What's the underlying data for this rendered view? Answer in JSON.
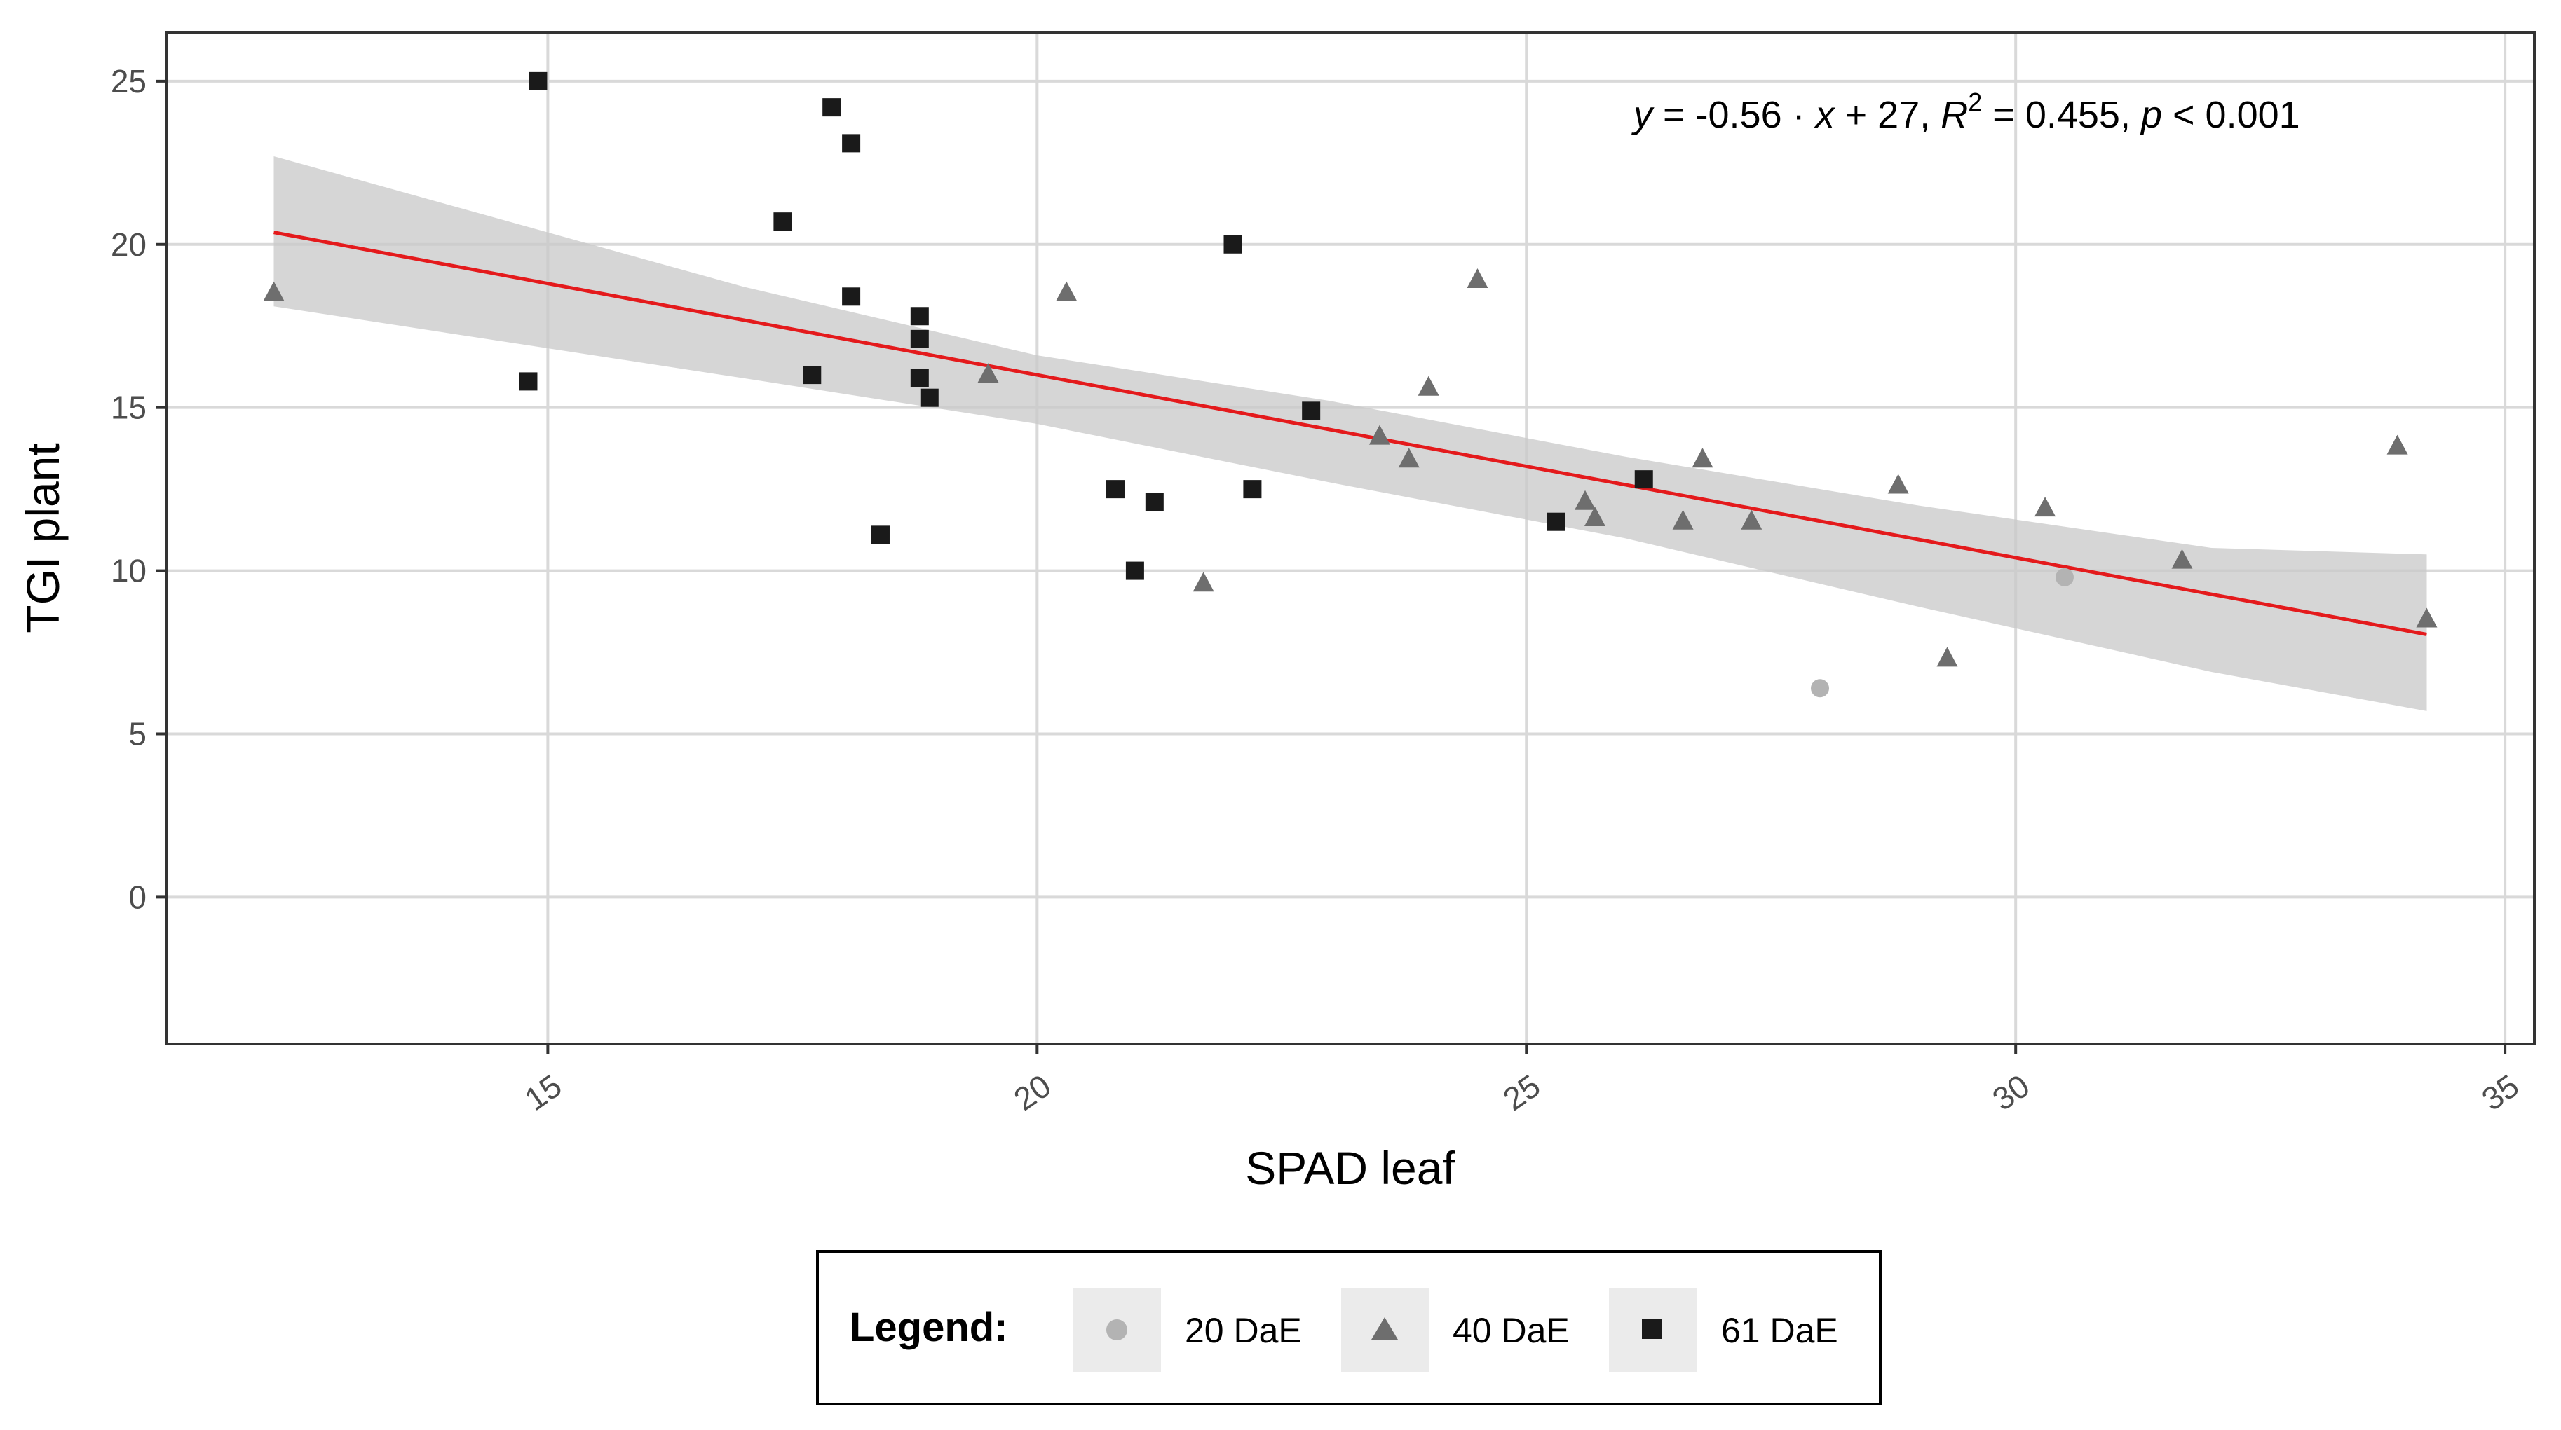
{
  "chart_data": {
    "type": "scatter",
    "xlabel": "SPAD leaf",
    "ylabel": "TGI plant",
    "xlim": [
      11.1,
      35.3
    ],
    "ylim": [
      -4.5,
      26.5
    ],
    "x_ticks": [
      15,
      20,
      25,
      30,
      35
    ],
    "y_ticks": [
      0,
      5,
      10,
      15,
      20,
      25
    ],
    "grid": true,
    "series": [
      {
        "name": "20 DaE",
        "shape": "circle",
        "color": "#b3b3b3",
        "points": [
          [
            28.0,
            6.4
          ],
          [
            30.5,
            9.8
          ]
        ]
      },
      {
        "name": "40 DaE",
        "shape": "triangle",
        "color": "#6e6e6e",
        "points": [
          [
            12.2,
            18.5
          ],
          [
            19.5,
            16.0
          ],
          [
            20.3,
            18.5
          ],
          [
            21.7,
            9.6
          ],
          [
            23.5,
            14.1
          ],
          [
            23.8,
            13.4
          ],
          [
            24.0,
            15.6
          ],
          [
            24.5,
            18.9
          ],
          [
            25.6,
            12.1
          ],
          [
            25.7,
            11.6
          ],
          [
            26.6,
            11.5
          ],
          [
            26.8,
            13.4
          ],
          [
            27.3,
            11.5
          ],
          [
            28.8,
            12.6
          ],
          [
            29.3,
            7.3
          ],
          [
            30.3,
            11.9
          ],
          [
            31.7,
            10.3
          ],
          [
            33.9,
            13.8
          ],
          [
            34.2,
            8.5
          ]
        ]
      },
      {
        "name": "61 DaE",
        "shape": "square",
        "color": "#1a1a1a",
        "points": [
          [
            14.8,
            15.8
          ],
          [
            14.9,
            25.0
          ],
          [
            17.4,
            20.7
          ],
          [
            17.7,
            16.0
          ],
          [
            17.9,
            24.2
          ],
          [
            18.1,
            23.1
          ],
          [
            18.1,
            18.4
          ],
          [
            18.4,
            11.1
          ],
          [
            18.8,
            17.8
          ],
          [
            18.8,
            17.1
          ],
          [
            18.8,
            15.9
          ],
          [
            18.9,
            15.3
          ],
          [
            20.8,
            12.5
          ],
          [
            21.0,
            10.0
          ],
          [
            21.2,
            12.1
          ],
          [
            22.0,
            20.0
          ],
          [
            22.2,
            12.5
          ],
          [
            22.8,
            14.9
          ],
          [
            25.3,
            11.5
          ],
          [
            26.2,
            12.8
          ]
        ]
      }
    ],
    "regression": {
      "slope": -0.56,
      "intercept": 27.2,
      "x_range": [
        12.2,
        34.2
      ],
      "color": "#e41a1c",
      "band": [
        [
          12.2,
          18.1,
          22.7
        ],
        [
          17.0,
          15.9,
          18.7
        ],
        [
          20.0,
          14.5,
          16.6
        ],
        [
          23.0,
          12.7,
          15.2
        ],
        [
          26.0,
          11.0,
          13.5
        ],
        [
          29.0,
          8.9,
          12.0
        ],
        [
          32.0,
          6.9,
          10.7
        ],
        [
          34.2,
          5.7,
          10.5
        ]
      ]
    },
    "annotation": {
      "y": "y",
      "eq": " = -0.56 · ",
      "x": "x",
      "rest": " + 27,  ",
      "R": "R",
      "sup": "2",
      "r2": " = 0.455,  ",
      "p": "p",
      "pv": " < 0.001"
    },
    "legend": {
      "title": "Legend:",
      "entries": [
        "20 DaE",
        "40 DaE",
        "61 DaE"
      ],
      "placement": "bottom"
    }
  }
}
